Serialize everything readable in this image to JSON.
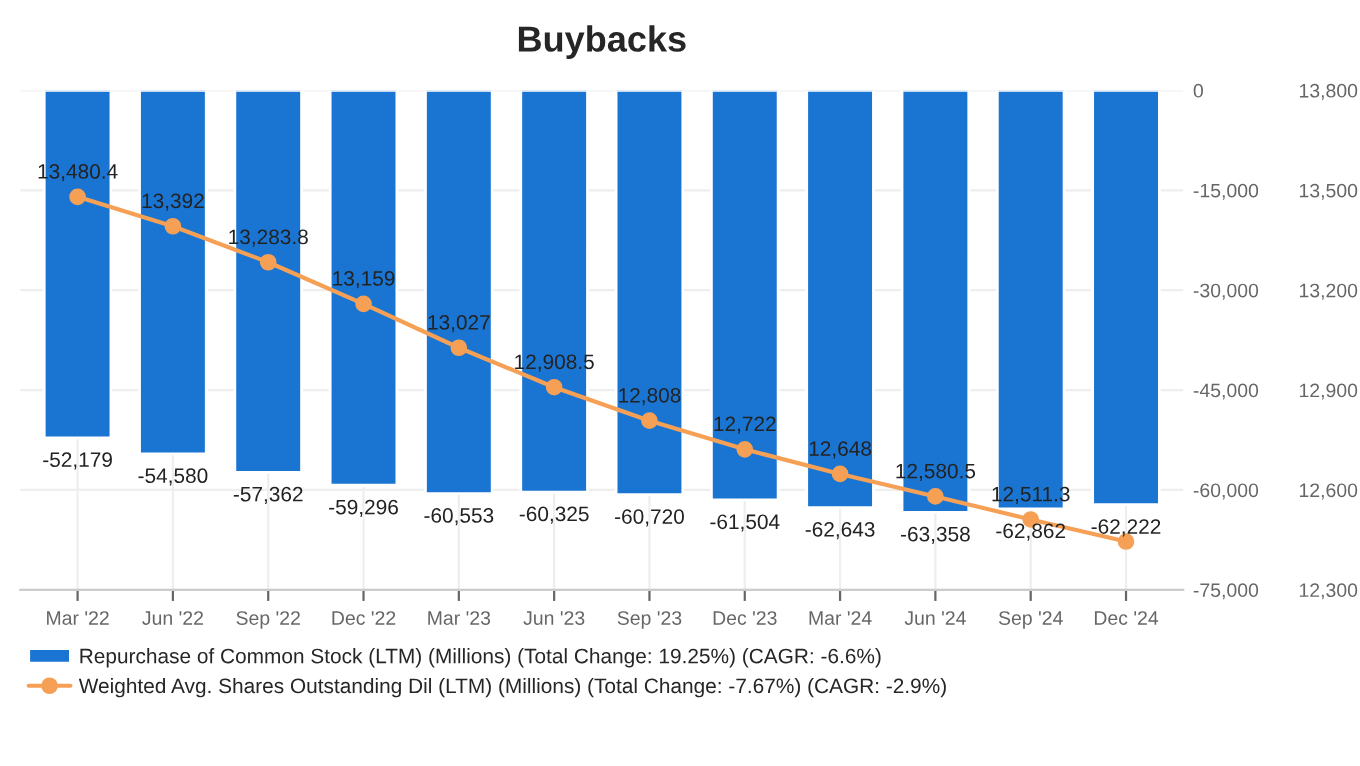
{
  "chart_data": {
    "type": "bar",
    "title": "Buybacks",
    "categories": [
      "Mar '22",
      "Jun '22",
      "Sep '22",
      "Dec '22",
      "Mar '23",
      "Jun '23",
      "Sep '23",
      "Dec '23",
      "Mar '24",
      "Jun '24",
      "Sep '24",
      "Dec '24"
    ],
    "series": [
      {
        "name": "Repurchase of Common Stock (LTM) (Millions) (Total Change: 19.25%) (CAGR: -6.6%)",
        "color": "#1a75d2",
        "values": [
          -52179,
          -54580,
          -57362,
          -59296,
          -60553,
          -60325,
          -60720,
          -61504,
          -62643,
          -63358,
          -62862,
          -62222
        ],
        "value_labels": [
          "-52,179",
          "-54,580",
          "-57,362",
          "-59,296",
          "-60,553",
          "-60,325",
          "-60,720",
          "-61,504",
          "-62,643",
          "-63,358",
          "-62,862",
          "-62,222"
        ]
      },
      {
        "name": "Weighted Avg. Shares Outstanding Dil (LTM) (Millions) (Total Change: -7.67%) (CAGR: -2.9%)",
        "type": "line",
        "axis": "y2",
        "color": "#f5a055",
        "marker": "circle",
        "values": [
          13480.4,
          13392,
          13283.8,
          13159,
          13027,
          12908.5,
          12808,
          12722,
          12648,
          12580.5,
          12511.3,
          12445
        ],
        "value_labels": [
          "13,480.4",
          "13,392",
          "13,283.8",
          "13,159",
          "13,027",
          "12,908.5",
          "12,808",
          "12,722",
          "12,648",
          "12,580.5",
          "12,511.3",
          null
        ]
      }
    ],
    "ylim": [
      -75000,
      0
    ],
    "yticks": [
      {
        "value": -75000,
        "label": "-75,000"
      },
      {
        "value": -60000,
        "label": "-60,000"
      },
      {
        "value": -45000,
        "label": "-45,000"
      },
      {
        "value": -30000,
        "label": "-30,000"
      },
      {
        "value": -15000,
        "label": "-15,000"
      },
      0
    ],
    "y2lim": [
      12300,
      13800
    ],
    "y2ticks": [
      {
        "value": 12300,
        "label": "12,300"
      },
      {
        "value": 12600,
        "label": "12,600"
      },
      {
        "value": 12900,
        "label": "12,900"
      },
      {
        "value": 13200,
        "label": "13,200"
      },
      {
        "value": 13500,
        "label": "13,500"
      },
      {
        "value": 13800,
        "label": "13,800"
      }
    ],
    "grid": true,
    "legend": "bottom"
  }
}
